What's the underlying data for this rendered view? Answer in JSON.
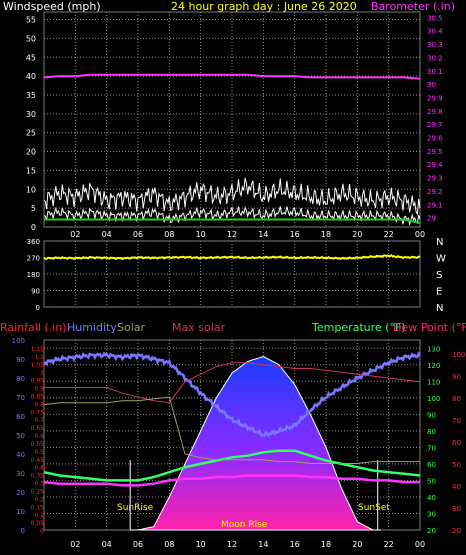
{
  "colors": {
    "background": "#000000",
    "grid": "#8a8a8a",
    "wind_label": "#ffffff",
    "baro": "#ff33ff",
    "rain": "#ff2222",
    "humidity": "#7777ff",
    "solar": "#a0a060",
    "max_solar": "#cc3355",
    "temperature": "#33ff66",
    "dewpoint": "#ff2266",
    "direction": "#ffff00"
  },
  "header": {
    "windspeed_label": "Windspeed (mph)",
    "title": "24 hour graph day : June 26 2020",
    "barometer_label": "Barometer (.in)"
  },
  "bottom_header": {
    "rainfall_label": "Rainfall (.in)",
    "humidity_label": "Humidity",
    "solar_label": "Solar",
    "max_solar_label": "Max solar",
    "temperature_label": "Temperature (°F)",
    "dewpoint_label": "Dew Point (°F)"
  },
  "annotations": {
    "sunrise": "SunRise",
    "sunset": "SunSet",
    "moonrise": "Moon Rise"
  },
  "chart_data": [
    {
      "type": "line",
      "panel": "wind_barometer",
      "x_ticks": [
        "02",
        "04",
        "06",
        "08",
        "10",
        "12",
        "14",
        "16",
        "18",
        "20",
        "22",
        "00"
      ],
      "x": [
        0,
        1,
        2,
        3,
        4,
        5,
        6,
        7,
        8,
        9,
        10,
        11,
        12,
        13,
        14,
        15,
        16,
        17,
        18,
        19,
        20,
        21,
        22,
        23,
        24
      ],
      "y_left_ticks": [
        0,
        5,
        10,
        15,
        20,
        25,
        30,
        35,
        40,
        45,
        50,
        55
      ],
      "y_left_label": "Windspeed (mph)",
      "ylim_left": [
        0,
        57
      ],
      "y_right_ticks": [
        "29",
        "29.1",
        "29.2",
        "29.3",
        "29.4",
        "29.5",
        "29.6",
        "29.7",
        "29.8",
        "29.9",
        "30",
        "30.1",
        "30.2",
        "30.3",
        "30.4",
        "30.5"
      ],
      "y_right_label": "Barometer (.in)",
      "ylim_right": [
        28.93,
        30.54
      ],
      "series": [
        {
          "name": "Barometer",
          "axis": "right",
          "color": "#ff33ff",
          "values": [
            30.05,
            30.06,
            30.06,
            30.07,
            30.07,
            30.07,
            30.07,
            30.07,
            30.07,
            30.07,
            30.07,
            30.07,
            30.07,
            30.07,
            30.06,
            30.06,
            30.06,
            30.05,
            30.05,
            30.05,
            30.05,
            30.05,
            30.05,
            30.05,
            30.04
          ]
        },
        {
          "name": "Wind gust",
          "axis": "left",
          "color": "#ffffff",
          "values": [
            7,
            9,
            8,
            10,
            7,
            8,
            7,
            9,
            6,
            8,
            10,
            8,
            9,
            11,
            8,
            10,
            9,
            8,
            7,
            9,
            8,
            7,
            8,
            7,
            5
          ]
        },
        {
          "name": "Wind speed",
          "axis": "left",
          "color": "#ffffff",
          "values": [
            3,
            4,
            3,
            4,
            3,
            3,
            3,
            4,
            2,
            3,
            4,
            3,
            4,
            4,
            3,
            4,
            4,
            3,
            3,
            3,
            3,
            3,
            3,
            2,
            2
          ]
        },
        {
          "name": "Wind average",
          "axis": "left",
          "color": "#22cc22",
          "values": [
            2,
            2,
            2,
            2,
            2,
            2,
            2,
            2,
            2,
            2,
            2,
            2,
            2,
            2,
            2,
            2,
            2,
            2,
            2,
            2,
            2,
            2,
            2,
            2,
            1
          ]
        }
      ]
    },
    {
      "type": "line",
      "panel": "wind_direction",
      "x": [
        0,
        1,
        2,
        3,
        4,
        5,
        6,
        7,
        8,
        9,
        10,
        11,
        12,
        13,
        14,
        15,
        16,
        17,
        18,
        19,
        20,
        21,
        22,
        23,
        24
      ],
      "y_ticks": [
        "360",
        "270",
        "180",
        "90",
        "0"
      ],
      "right_labels": [
        "N",
        "W",
        "S",
        "E",
        "N"
      ],
      "ylim": [
        0,
        360
      ],
      "series": [
        {
          "name": "Wind direction",
          "color": "#ffff00",
          "values": [
            265,
            268,
            266,
            270,
            268,
            265,
            270,
            268,
            270,
            272,
            268,
            270,
            272,
            268,
            270,
            272,
            268,
            270,
            268,
            265,
            268,
            275,
            280,
            270,
            272
          ]
        }
      ]
    },
    {
      "type": "line",
      "panel": "rain_humidity_solar_temperature",
      "x_ticks": [
        "02",
        "04",
        "06",
        "08",
        "10",
        "12",
        "14",
        "16",
        "18",
        "20",
        "22",
        "00"
      ],
      "x": [
        0,
        1,
        2,
        3,
        4,
        5,
        6,
        7,
        8,
        9,
        10,
        11,
        12,
        13,
        14,
        15,
        16,
        17,
        18,
        19,
        20,
        21,
        22,
        23,
        24
      ],
      "y_rain_ticks": [
        "0",
        "0.05",
        "0.1",
        "0.15",
        "0.2",
        "0.25",
        "0.3",
        "0.35",
        "0.4",
        "0.45",
        "0.5",
        "0.55",
        "0.6",
        "0.65",
        "0.7",
        "0.75",
        "0.8",
        "0.85",
        "0.9",
        "0.95",
        "1",
        "1.05",
        "1.1",
        "1.15"
      ],
      "y_humidity_ticks": [
        "0",
        "10",
        "20",
        "30",
        "40",
        "50",
        "60",
        "70",
        "80",
        "90",
        "100"
      ],
      "y_temperature_ticks": [
        "20",
        "30",
        "40",
        "50",
        "60",
        "70",
        "80",
        "90",
        "100",
        "110",
        "120",
        "130"
      ],
      "y_dewpoint_ticks": [
        "20",
        "30",
        "40",
        "50",
        "60",
        "70",
        "80",
        "90",
        "100"
      ],
      "ylim_temperature": [
        20,
        135
      ],
      "ylim_humidity": [
        0,
        100
      ],
      "series": [
        {
          "name": "Humidity",
          "axis": "humidity",
          "color": "#7777ff",
          "values": [
            88,
            90,
            91,
            92,
            92,
            91,
            92,
            90,
            88,
            80,
            72,
            65,
            58,
            54,
            50,
            52,
            55,
            63,
            70,
            75,
            80,
            84,
            88,
            91,
            92
          ]
        },
        {
          "name": "Temperature",
          "axis": "temperature",
          "color": "#33ff66",
          "values": [
            55,
            53,
            52,
            51,
            50,
            50,
            50,
            52,
            55,
            58,
            60,
            62,
            64,
            65,
            67,
            68,
            68,
            65,
            62,
            60,
            58,
            56,
            55,
            54,
            53
          ]
        },
        {
          "name": "Dew Point",
          "axis": "temperature",
          "color": "#ff33ff",
          "values": [
            49,
            48,
            48,
            48,
            48,
            47,
            47,
            48,
            50,
            51,
            51,
            52,
            52,
            53,
            53,
            53,
            53,
            52,
            52,
            51,
            51,
            50,
            50,
            49,
            49
          ]
        },
        {
          "name": "Max solar",
          "axis": "humidity",
          "color": "#cc3355",
          "values": [
            75,
            75,
            75,
            75,
            75,
            72,
            70,
            68,
            67,
            78,
            82,
            86,
            88,
            88,
            87,
            86,
            85,
            85,
            84,
            83,
            82,
            81,
            80,
            79,
            78
          ]
        },
        {
          "name": "Solar",
          "axis": "humidity",
          "color": "#a0a060",
          "values": [
            66,
            67,
            67,
            67,
            67,
            68,
            68,
            69,
            70,
            40,
            38,
            37,
            37,
            37,
            37,
            36,
            36,
            35,
            35,
            35,
            35,
            36,
            36,
            36,
            36
          ]
        },
        {
          "name": "Solar radiation",
          "axis": "temperature",
          "color": "#8a6cff",
          "values": [
            20,
            20,
            20,
            20,
            20,
            20,
            20,
            22,
            40,
            60,
            80,
            100,
            115,
            122,
            125,
            120,
            108,
            90,
            70,
            45,
            25,
            20,
            20,
            20,
            20
          ]
        }
      ]
    }
  ]
}
